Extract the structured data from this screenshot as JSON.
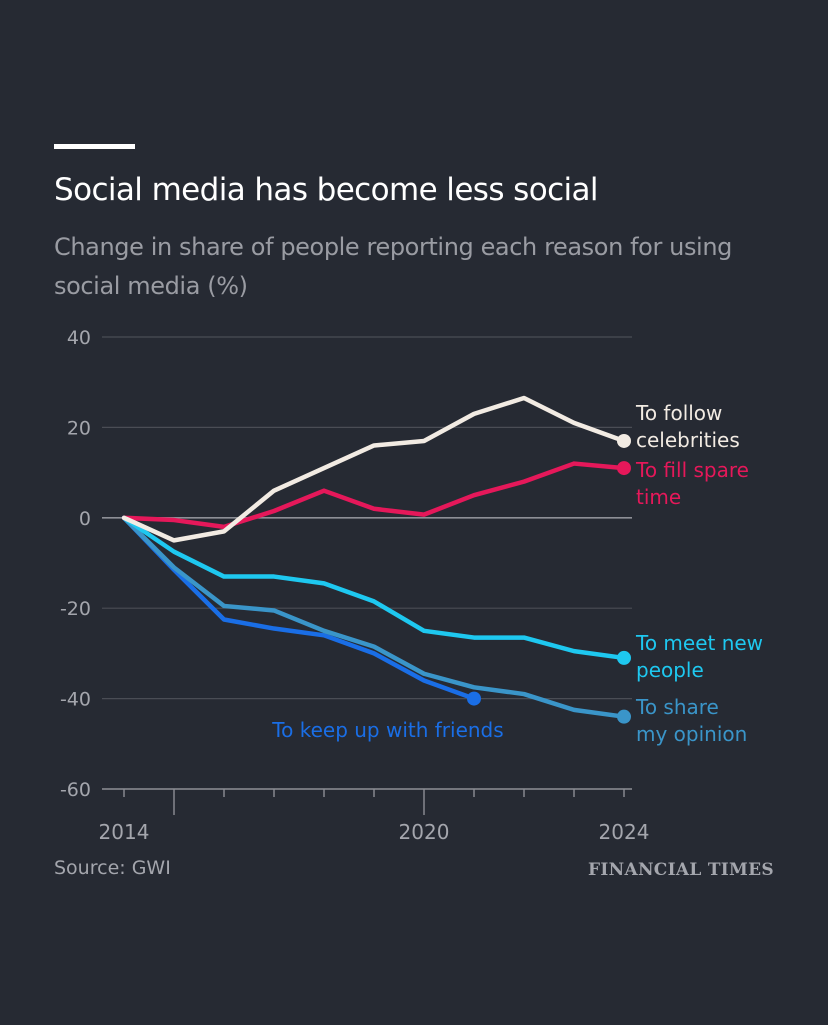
{
  "header": {
    "title": "Social media has become less social",
    "subtitle": "Change in share of people reporting each reason for using social media (%)"
  },
  "footer": {
    "source": "Source: GWI",
    "brand": "FINANCIAL TIMES"
  },
  "chart_data": {
    "type": "line",
    "title": "Social media has become less social",
    "subtitle": "Change in share of people reporting each reason for using social media (%)",
    "xlabel": "",
    "ylabel": "",
    "x": [
      2014,
      2015,
      2016,
      2017,
      2018,
      2019,
      2020,
      2021,
      2022,
      2023,
      2024
    ],
    "xlim": [
      2014,
      2024
    ],
    "ylim": [
      -60,
      40
    ],
    "yticks": [
      40,
      20,
      0,
      -20,
      -40,
      -60
    ],
    "xtick_labels": [
      {
        "value": 2014,
        "label": "2014"
      },
      {
        "value": 2020,
        "label": "2020"
      },
      {
        "value": 2024,
        "label": "2024"
      }
    ],
    "grid": true,
    "legend": "direct-labels",
    "series": [
      {
        "name": "To follow celebrities",
        "label_lines": [
          "To follow",
          "celebrities"
        ],
        "color": "#f2ebe3",
        "values": [
          0,
          -5,
          -3,
          6,
          11,
          16,
          17,
          23,
          26.5,
          21,
          17
        ]
      },
      {
        "name": "To fill spare time",
        "label_lines": [
          "To fill spare",
          "time"
        ],
        "color": "#e5185a",
        "values": [
          0,
          -0.5,
          -2,
          1.5,
          6,
          2,
          0.7,
          5,
          8,
          12,
          11
        ]
      },
      {
        "name": "To meet new people",
        "label_lines": [
          "To meet new",
          "people"
        ],
        "color": "#1ec8f0",
        "values": [
          0,
          -7.5,
          -13,
          -13,
          -14.5,
          -18.5,
          -25,
          -26.5,
          -26.5,
          -29.5,
          -31
        ]
      },
      {
        "name": "To share my opinion",
        "label_lines": [
          "To share",
          "my opinion"
        ],
        "color": "#3a95c9",
        "values": [
          0,
          -11,
          -19.5,
          -20.5,
          -25,
          -28.5,
          -34.5,
          -37.5,
          -39,
          -42.5,
          -44
        ]
      },
      {
        "name": "To keep up with friends",
        "label_lines": [
          "To keep up with friends"
        ],
        "color": "#1a6ee6",
        "values": [
          0,
          -11.5,
          -22.5,
          -24.5,
          -26,
          -30,
          -36,
          -40,
          null,
          null,
          null
        ]
      }
    ]
  }
}
